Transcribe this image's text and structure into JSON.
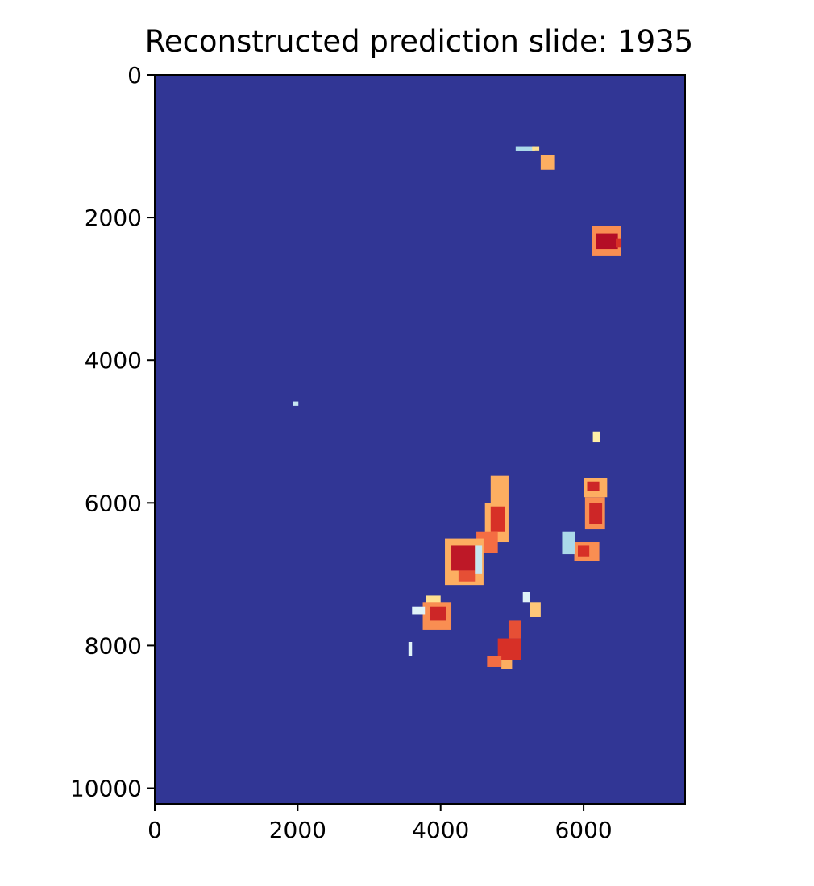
{
  "chart_data": {
    "type": "heatmap",
    "title": "Reconstructed prediction slide: 1935",
    "xlabel": "",
    "ylabel": "",
    "xlim": [
      0,
      7420
    ],
    "ylim": [
      10220,
      0
    ],
    "y_inverted": true,
    "grid": false,
    "colormap": "RdYlBu_r",
    "x_ticks": [
      0,
      2000,
      4000,
      6000
    ],
    "y_ticks": [
      0,
      2000,
      4000,
      6000,
      8000,
      10000
    ],
    "background_value": 0.0,
    "regions": [
      {
        "x0": 5050,
        "y0": 1000,
        "x1": 5320,
        "y1": 1070,
        "value": 0.3
      },
      {
        "x0": 5280,
        "y0": 1000,
        "x1": 5380,
        "y1": 1060,
        "value": 0.6
      },
      {
        "x0": 5400,
        "y0": 1120,
        "x1": 5600,
        "y1": 1330,
        "value": 0.7
      },
      {
        "x0": 6120,
        "y0": 2120,
        "x1": 6520,
        "y1": 2540,
        "value": 0.75
      },
      {
        "x0": 6170,
        "y0": 2220,
        "x1": 6480,
        "y1": 2440,
        "value": 0.97
      },
      {
        "x0": 6450,
        "y0": 2300,
        "x1": 6530,
        "y1": 2420,
        "value": 0.9
      },
      {
        "x0": 6130,
        "y0": 5000,
        "x1": 6230,
        "y1": 5150,
        "value": 0.55
      },
      {
        "x0": 6000,
        "y0": 5650,
        "x1": 6330,
        "y1": 5920,
        "value": 0.7
      },
      {
        "x0": 6050,
        "y0": 5700,
        "x1": 6220,
        "y1": 5830,
        "value": 0.92
      },
      {
        "x0": 6020,
        "y0": 5920,
        "x1": 6300,
        "y1": 6370,
        "value": 0.75
      },
      {
        "x0": 6080,
        "y0": 6000,
        "x1": 6260,
        "y1": 6300,
        "value": 0.92
      },
      {
        "x0": 5870,
        "y0": 6550,
        "x1": 6220,
        "y1": 6820,
        "value": 0.75
      },
      {
        "x0": 5920,
        "y0": 6600,
        "x1": 6080,
        "y1": 6750,
        "value": 0.9
      },
      {
        "x0": 5700,
        "y0": 6400,
        "x1": 5880,
        "y1": 6720,
        "value": 0.3
      },
      {
        "x0": 4700,
        "y0": 5620,
        "x1": 4950,
        "y1": 6000,
        "value": 0.7
      },
      {
        "x0": 4620,
        "y0": 6000,
        "x1": 4950,
        "y1": 6550,
        "value": 0.7
      },
      {
        "x0": 4700,
        "y0": 6050,
        "x1": 4900,
        "y1": 6400,
        "value": 0.9
      },
      {
        "x0": 4500,
        "y0": 6400,
        "x1": 4800,
        "y1": 6700,
        "value": 0.8
      },
      {
        "x0": 4060,
        "y0": 6500,
        "x1": 4600,
        "y1": 7150,
        "value": 0.7
      },
      {
        "x0": 4150,
        "y0": 6600,
        "x1": 4480,
        "y1": 6950,
        "value": 0.95
      },
      {
        "x0": 4250,
        "y0": 6950,
        "x1": 4480,
        "y1": 7100,
        "value": 0.85
      },
      {
        "x0": 4480,
        "y0": 6600,
        "x1": 4580,
        "y1": 7000,
        "value": 0.35
      },
      {
        "x0": 3800,
        "y0": 7300,
        "x1": 4000,
        "y1": 7420,
        "value": 0.6
      },
      {
        "x0": 3750,
        "y0": 7400,
        "x1": 4150,
        "y1": 7780,
        "value": 0.75
      },
      {
        "x0": 3850,
        "y0": 7450,
        "x1": 4080,
        "y1": 7650,
        "value": 0.92
      },
      {
        "x0": 3600,
        "y0": 7450,
        "x1": 3780,
        "y1": 7560,
        "value": 0.4
      },
      {
        "x0": 5150,
        "y0": 7250,
        "x1": 5250,
        "y1": 7400,
        "value": 0.4
      },
      {
        "x0": 5250,
        "y0": 7400,
        "x1": 5400,
        "y1": 7600,
        "value": 0.65
      },
      {
        "x0": 4950,
        "y0": 7650,
        "x1": 5130,
        "y1": 7900,
        "value": 0.85
      },
      {
        "x0": 4800,
        "y0": 7900,
        "x1": 5130,
        "y1": 8200,
        "value": 0.9
      },
      {
        "x0": 4650,
        "y0": 8150,
        "x1": 4850,
        "y1": 8300,
        "value": 0.8
      },
      {
        "x0": 4850,
        "y0": 8200,
        "x1": 5000,
        "y1": 8330,
        "value": 0.7
      },
      {
        "x0": 3550,
        "y0": 7950,
        "x1": 3600,
        "y1": 8150,
        "value": 0.4
      },
      {
        "x0": 1930,
        "y0": 4580,
        "x1": 2010,
        "y1": 4640,
        "value": 0.35
      }
    ]
  }
}
